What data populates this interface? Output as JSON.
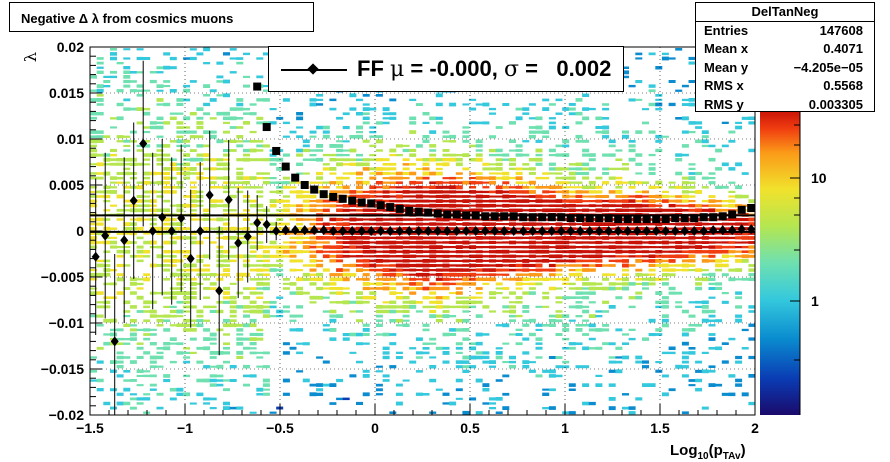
{
  "histogram_title": "Negative Δ λ from cosmics muons",
  "stats": {
    "name": "DelTanNeg",
    "rows": [
      {
        "label": "Entries",
        "value": "147608"
      },
      {
        "label": "Mean x",
        "value": "0.4071"
      },
      {
        "label": "Mean y",
        "value": "−4.205e−05"
      },
      {
        "label": "RMS x",
        "value": "0.5568"
      },
      {
        "label": "RMS y",
        "value": "0.003305"
      }
    ]
  },
  "legend": {
    "prefix": "FF ",
    "mu": "μ",
    "mid": " = -0.000, ",
    "sigma": "σ",
    "suffix": " =   0.002"
  },
  "colors": {
    "histogram_palette": [
      "#1a0a6b",
      "#0a3cb4",
      "#0a8ccf",
      "#35c9dd",
      "#6fe0b0",
      "#b5e650",
      "#f1e22c",
      "#fb9a18",
      "#f03c10",
      "#c81208"
    ],
    "markers": "#000000"
  },
  "chart_data": {
    "type": "heatmap",
    "title": "Negative Δ λ from cosmics muons",
    "xlabel": "Log10(pTAv)",
    "ylabel": "λ",
    "xlim": [
      -1.5,
      2.0
    ],
    "ylim": [
      -0.02,
      0.02
    ],
    "xticks": [
      "−1.5",
      "−1",
      "−0.5",
      "0",
      "0.5",
      "1",
      "1.5",
      "2"
    ],
    "yticks": [
      "0.02",
      "0.015",
      "0.01",
      "0.005",
      "0",
      "−0.005",
      "−0.01",
      "−0.015",
      "−0.02"
    ],
    "z_scale": "log",
    "z_ticks": [
      "10",
      "1"
    ],
    "grid": true,
    "series": [
      {
        "marker": "diamond",
        "x": [
          -1.47,
          -1.42,
          -1.37,
          -1.32,
          -1.27,
          -1.22,
          -1.17,
          -1.12,
          -1.07,
          -1.02,
          -0.97,
          -0.92,
          -0.87,
          -0.82,
          -0.77,
          -0.72,
          -0.67,
          -0.62,
          -0.57,
          -0.52,
          -0.47,
          -0.42,
          -0.37,
          -0.32,
          -0.27,
          -0.22,
          -0.17,
          -0.12,
          -0.07,
          -0.02,
          0.03,
          0.08,
          0.13,
          0.18,
          0.23,
          0.28,
          0.33,
          0.38,
          0.43,
          0.48,
          0.53,
          0.58,
          0.63,
          0.68,
          0.73,
          0.78,
          0.83,
          0.88,
          0.93,
          0.98,
          1.03,
          1.08,
          1.13,
          1.18,
          1.23,
          1.28,
          1.33,
          1.38,
          1.43,
          1.48,
          1.53,
          1.58,
          1.63,
          1.68,
          1.73,
          1.78,
          1.83,
          1.88,
          1.93,
          1.98
        ],
        "y": [
          -0.0028,
          -0.0005,
          -0.012,
          -0.001,
          0.0033,
          0.0095,
          0.0,
          0.0015,
          0.0,
          0.0014,
          -0.003,
          0.0,
          0.0039,
          -0.0065,
          0.0034,
          -0.0013,
          -0.0006,
          0.0009,
          0.0007,
          0.0,
          0.0001,
          0.0001,
          0.0001,
          0.0001,
          0.0001,
          0.0,
          0.0,
          0.0,
          0.0,
          0.0,
          0.0,
          0.0,
          0.0,
          0.0,
          0.0,
          0.0,
          0.0,
          0.0,
          0.0,
          0.0,
          0.0,
          0.0,
          0.0,
          0.0,
          0.0,
          0.0,
          0.0,
          0.0,
          0.0,
          0.0,
          0.0,
          0.0,
          0.0,
          0.0,
          0.0,
          0.0,
          0.0,
          0.0,
          0.0,
          0.0,
          0.0,
          0.0,
          0.0,
          0.0,
          0.0,
          0.0001,
          0.0001,
          0.0001,
          0.0002,
          0.0002
        ],
        "error_y": [
          0.0085,
          0.009,
          0.0095,
          0.009,
          0.0085,
          0.009,
          0.0085,
          0.0085,
          0.008,
          0.008,
          0.0075,
          0.0075,
          0.007,
          0.007,
          0.0065,
          0.006,
          0.005,
          0.003,
          0.002,
          0.001,
          0.0005,
          0.0003,
          0.0002,
          0.0002,
          0.0002,
          0.0001,
          0.0001,
          0.0001,
          0.0001,
          0.0001,
          0.0001,
          0.0001,
          0.0001,
          0.0001,
          0.0001,
          0.0001,
          0.0001,
          0.0001,
          0.0001,
          0.0001,
          0.0001,
          0.0001,
          0.0001,
          0.0001,
          0.0001,
          0.0001,
          0.0001,
          0.0001,
          0.0001,
          0.0001,
          0.0001,
          0.0001,
          0.0001,
          0.0001,
          0.0001,
          0.0001,
          0.0001,
          0.0001,
          0.0001,
          0.0001,
          0.0001,
          0.0001,
          0.0001,
          0.0001,
          0.0001,
          0.0001,
          0.0001,
          0.0001,
          0.0001,
          0.0001
        ]
      },
      {
        "marker": "square",
        "x": [
          -0.62,
          -0.57,
          -0.52,
          -0.47,
          -0.42,
          -0.37,
          -0.32,
          -0.27,
          -0.22,
          -0.17,
          -0.12,
          -0.07,
          -0.02,
          0.03,
          0.08,
          0.13,
          0.18,
          0.23,
          0.28,
          0.33,
          0.38,
          0.43,
          0.48,
          0.53,
          0.58,
          0.63,
          0.68,
          0.73,
          0.78,
          0.83,
          0.88,
          0.93,
          0.98,
          1.03,
          1.08,
          1.13,
          1.18,
          1.23,
          1.28,
          1.33,
          1.38,
          1.43,
          1.48,
          1.53,
          1.58,
          1.63,
          1.68,
          1.73,
          1.78,
          1.83,
          1.88,
          1.93,
          1.98
        ],
        "y": [
          0.0157,
          0.0113,
          0.0087,
          0.007,
          0.0058,
          0.005,
          0.0045,
          0.004,
          0.0037,
          0.0035,
          0.0033,
          0.0031,
          0.003,
          0.0028,
          0.0026,
          0.0024,
          0.0022,
          0.0021,
          0.002,
          0.0019,
          0.0018,
          0.0018,
          0.0017,
          0.0017,
          0.0016,
          0.0016,
          0.0016,
          0.0016,
          0.0015,
          0.0015,
          0.0015,
          0.0015,
          0.0015,
          0.0014,
          0.0014,
          0.0014,
          0.0014,
          0.0014,
          0.0013,
          0.0013,
          0.0013,
          0.0013,
          0.0013,
          0.0013,
          0.0014,
          0.0014,
          0.0014,
          0.0015,
          0.0015,
          0.0016,
          0.0018,
          0.0023,
          0.0025
        ]
      },
      {
        "marker": "line",
        "x": [
          -1.5,
          2.0
        ],
        "y": [
          0.0017,
          0.0017
        ]
      },
      {
        "marker": "line",
        "x": [
          -1.5,
          2.0
        ],
        "y": [
          -0.0001,
          -0.0001
        ]
      }
    ]
  }
}
